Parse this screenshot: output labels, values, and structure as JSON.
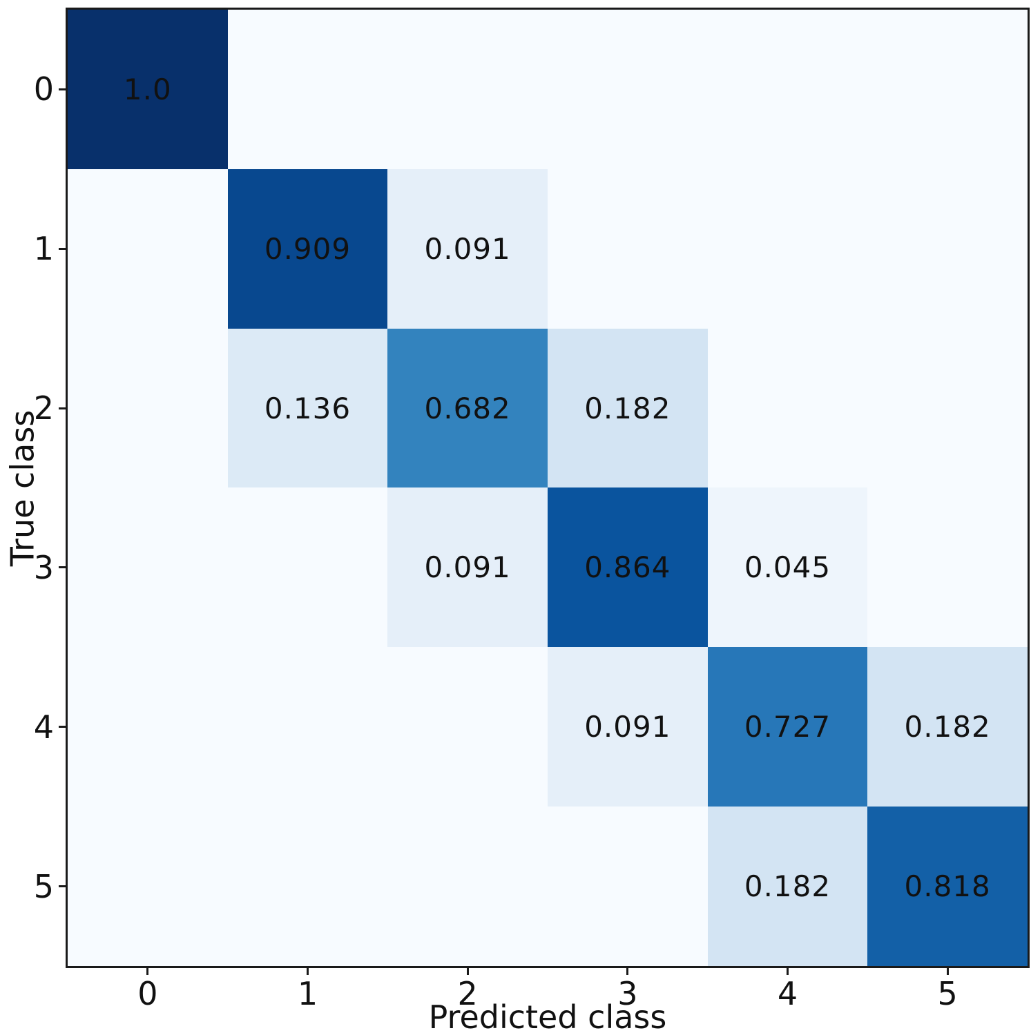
{
  "chart_data": {
    "type": "heatmap",
    "title": "",
    "xlabel": "Predicted class",
    "ylabel": "True class",
    "x_ticklabels": [
      "0",
      "1",
      "2",
      "3",
      "4",
      "5"
    ],
    "y_ticklabels": [
      "0",
      "1",
      "2",
      "3",
      "4",
      "5"
    ],
    "matrix": [
      [
        1.0,
        0,
        0,
        0,
        0,
        0
      ],
      [
        0,
        0.909,
        0.091,
        0,
        0,
        0
      ],
      [
        0,
        0.136,
        0.682,
        0.182,
        0,
        0
      ],
      [
        0,
        0,
        0.091,
        0.864,
        0.045,
        0
      ],
      [
        0,
        0,
        0,
        0.091,
        0.727,
        0.182
      ],
      [
        0,
        0,
        0,
        0,
        0.182,
        0.818
      ]
    ],
    "cell_labels": [
      [
        "1.0",
        "",
        "",
        "",
        "",
        ""
      ],
      [
        "",
        "0.909",
        "0.091",
        "",
        "",
        ""
      ],
      [
        "",
        "0.136",
        "0.682",
        "0.182",
        "",
        ""
      ],
      [
        "",
        "",
        "0.091",
        "0.864",
        "0.045",
        ""
      ],
      [
        "",
        "",
        "",
        "0.091",
        "0.727",
        "0.182"
      ],
      [
        "",
        "",
        "",
        "",
        "0.182",
        "0.818"
      ]
    ],
    "value_range": [
      0,
      1
    ],
    "colormap": "Blues",
    "colormap_stops": [
      {
        "pos": 0.0,
        "color": "#f7fbff"
      },
      {
        "pos": 0.125,
        "color": "#deebf7"
      },
      {
        "pos": 0.25,
        "color": "#c6dbef"
      },
      {
        "pos": 0.375,
        "color": "#9ecae1"
      },
      {
        "pos": 0.5,
        "color": "#6baed6"
      },
      {
        "pos": 0.625,
        "color": "#4292c6"
      },
      {
        "pos": 0.75,
        "color": "#2171b5"
      },
      {
        "pos": 0.875,
        "color": "#08519c"
      },
      {
        "pos": 1.0,
        "color": "#08306b"
      }
    ],
    "text_color": "#111111",
    "spine_color": "#1a1a1a",
    "legend": "none",
    "grid": "off"
  }
}
